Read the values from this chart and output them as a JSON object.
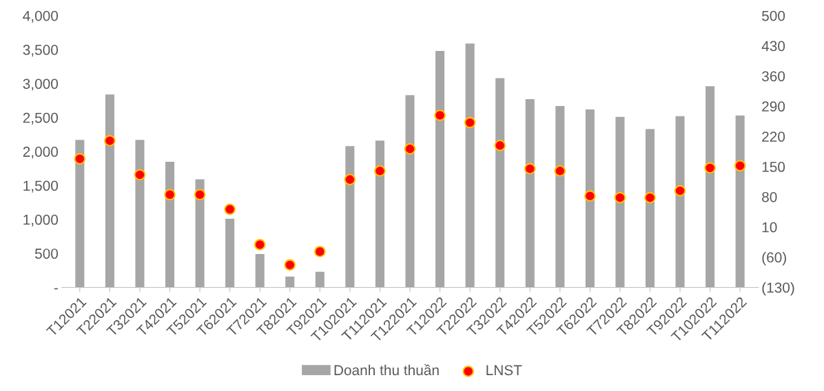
{
  "chart_data": {
    "type": "bar",
    "categories": [
      "T12021",
      "T22021",
      "T32021",
      "T42021",
      "T52021",
      "T62021",
      "T72021",
      "T82021",
      "T92021",
      "T102021",
      "T112021",
      "T122021",
      "T12022",
      "T22022",
      "T32022",
      "T42022",
      "T52022",
      "T62022",
      "T72022",
      "T82022",
      "T92022",
      "T102022",
      "T112022"
    ],
    "series": [
      {
        "name": "Doanh thu thuần",
        "color": "#a6a6a6",
        "values": [
          2170,
          2840,
          2170,
          1850,
          1590,
          1010,
          490,
          160,
          230,
          2080,
          2160,
          2830,
          3480,
          3590,
          3080,
          2770,
          2670,
          2620,
          2510,
          2330,
          2520,
          2960,
          2530
        ]
      },
      {
        "name": "LNST",
        "type": "scatter",
        "axis": "y2",
        "color": "#ff0000",
        "values": [
          168,
          210,
          131,
          85,
          85,
          51,
          -31,
          -78,
          -47,
          120,
          140,
          191,
          269,
          252,
          199,
          145,
          140,
          82,
          78,
          78,
          94,
          147,
          152
        ]
      }
    ],
    "ylim": [
      0,
      4000
    ],
    "yticks": [
      {
        "value": 0,
        "label": "-"
      },
      {
        "value": 500,
        "label": "500"
      },
      {
        "value": 1000,
        "label": "1,000"
      },
      {
        "value": 1500,
        "label": "1,500"
      },
      {
        "value": 2000,
        "label": "2,000"
      },
      {
        "value": 2500,
        "label": "2,500"
      },
      {
        "value": 3000,
        "label": "3,000"
      },
      {
        "value": 3500,
        "label": "3,500"
      },
      {
        "value": 4000,
        "label": "4,000"
      }
    ],
    "y2lim": [
      -130,
      500
    ],
    "y2ticks": [
      {
        "value": -130,
        "label": "(130)"
      },
      {
        "value": -60,
        "label": "(60)"
      },
      10,
      80,
      150,
      220,
      290,
      360,
      430,
      500
    ],
    "legend": "bottom",
    "marker": "circle",
    "grid": false
  }
}
